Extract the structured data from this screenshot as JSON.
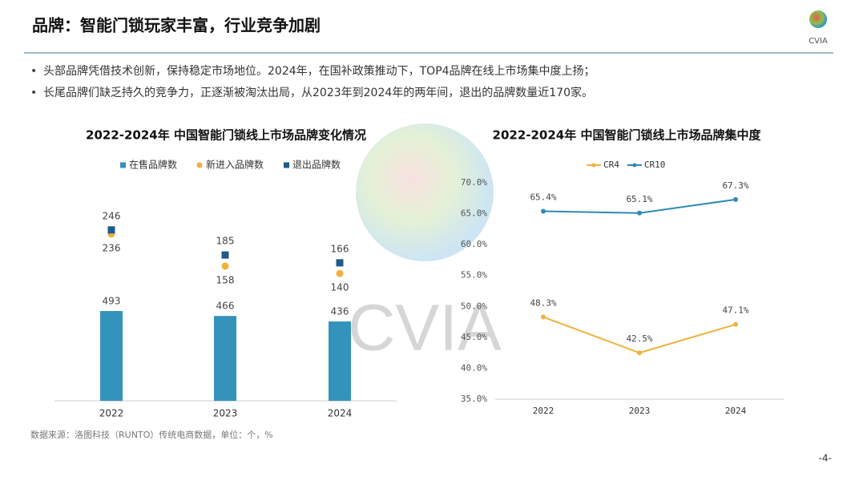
{
  "header": {
    "title": "品牌：智能门锁玩家丰富，行业竞争加剧",
    "logo_text": "CVIA"
  },
  "bullets": [
    "头部品牌凭借技术创新，保持稳定市场地位。2024年，在国补政策推动下，TOP4品牌在线上市场集中度上扬；",
    "长尾品牌们缺乏持久的竞争力，正逐渐被淘汰出局，从2023年到2024年的两年间，退出的品牌数量近170家。"
  ],
  "watermark": "CVIA",
  "chart_data": [
    {
      "type": "bar",
      "title": "2022-2024年 中国智能门锁线上市场品牌变化情况",
      "legend": "top",
      "categories": [
        "2022",
        "2023",
        "2024"
      ],
      "series": [
        {
          "name": "在售品牌数",
          "color": "#3493bb",
          "marker": "bar",
          "values": [
            493,
            466,
            436
          ]
        },
        {
          "name": "新进入品牌数",
          "color": "#f0b23c",
          "marker": "circle",
          "axis": "y2",
          "values": [
            236,
            158,
            140
          ]
        },
        {
          "name": "退出品牌数",
          "color": "#1f5a8a",
          "marker": "square",
          "axis": "y2",
          "values": [
            246,
            185,
            166
          ]
        }
      ]
    },
    {
      "type": "line",
      "title": "2022-2024年 中国智能门锁线上市场品牌集中度",
      "legend": "top",
      "categories": [
        "2022",
        "2023",
        "2024"
      ],
      "ylim": [
        35,
        70
      ],
      "yticks": [
        {
          "value": 35,
          "label": "35.0%"
        },
        {
          "value": 40,
          "label": "40.0%"
        },
        {
          "value": 45,
          "label": "45.0%"
        },
        {
          "value": 50,
          "label": "50.0%"
        },
        {
          "value": 55,
          "label": "55.0%"
        },
        {
          "value": 60,
          "label": "60.0%"
        },
        {
          "value": 65,
          "label": "65.0%"
        },
        {
          "value": 70,
          "label": "70.0%"
        }
      ],
      "series": [
        {
          "name": "CR4",
          "color": "#f0b23c",
          "values": [
            48.3,
            42.5,
            47.1
          ],
          "value_labels": [
            "48.3%",
            "42.5%",
            "47.1%"
          ]
        },
        {
          "name": "CR10",
          "color": "#2e8ab5",
          "values": [
            65.4,
            65.1,
            67.3
          ],
          "value_labels": [
            "65.4%",
            "65.1%",
            "67.3%"
          ]
        }
      ]
    }
  ],
  "source": "数据来源：洛图科技（RUNTO）传统电商数据，单位：个，%",
  "page_number": "-4-"
}
